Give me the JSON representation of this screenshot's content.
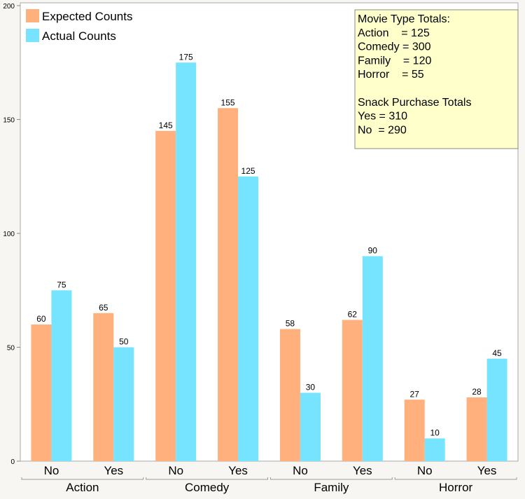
{
  "chart_data": {
    "type": "bar",
    "groups": [
      "Action",
      "Comedy",
      "Family",
      "Horror"
    ],
    "subcategories": [
      "No",
      "Yes"
    ],
    "categories": [
      "Action No",
      "Action Yes",
      "Comedy No",
      "Comedy Yes",
      "Family No",
      "Family Yes",
      "Horror No",
      "Horror Yes"
    ],
    "series": [
      {
        "name": "Expected Counts",
        "color": "#ffb07c",
        "values": [
          60,
          65,
          145,
          155,
          58,
          62,
          27,
          28
        ]
      },
      {
        "name": "Actual Counts",
        "color": "#76e3ff",
        "values": [
          75,
          50,
          175,
          125,
          30,
          90,
          10,
          45
        ]
      }
    ],
    "ylim": [
      0,
      200
    ],
    "yticks": [
      0,
      50,
      100,
      150,
      200
    ],
    "grid": false,
    "legend": "top-left",
    "annotation": {
      "lines": [
        "Movie Type Totals:",
        "Action    = 125",
        "Comedy = 300",
        "Family    = 120",
        "Horror    = 55",
        "",
        "Snack Purchase Totals",
        "Yes = 310",
        "No  = 290"
      ],
      "background": "#ffffcc"
    }
  }
}
